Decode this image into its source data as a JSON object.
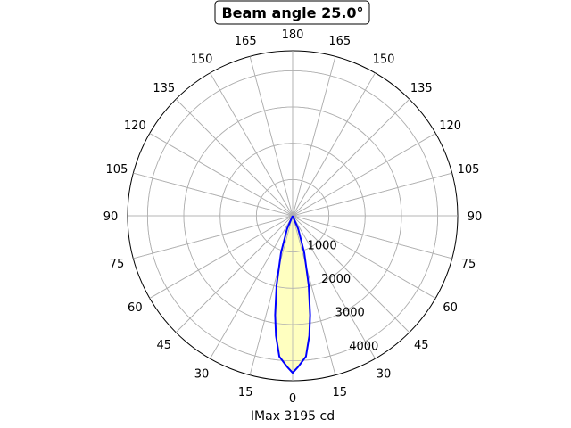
{
  "chart_data": {
    "type": "polar",
    "title": "Beam angle 25.0°",
    "xlabel": "IMax 3195 cd",
    "theta_zero": "bottom",
    "theta_ticks": [
      0,
      15,
      30,
      45,
      60,
      75,
      90,
      105,
      120,
      135,
      150,
      165,
      180
    ],
    "r_ticks": [
      1000,
      2000,
      3000,
      4000
    ],
    "r_tick_labels": [
      "1000",
      "2000",
      "3000",
      "4000"
    ],
    "rlim": [
      0,
      4550
    ],
    "grid": true,
    "series": [
      {
        "theta": [
          -28,
          -23,
          -17.5,
          -13,
          -10,
          -7.9,
          -5.4,
          -2.1,
          0,
          2.1,
          5.4,
          7.9,
          10,
          13,
          17.5,
          23,
          28
        ],
        "r": [
          0,
          390,
          1065,
          1970,
          2780,
          3340,
          3900,
          4170,
          4330,
          4170,
          3900,
          3340,
          2780,
          1970,
          1065,
          390,
          0
        ]
      }
    ],
    "colors": {
      "line": "#0000ff",
      "fill": "#ffffc0",
      "grid": "#b0b0b0"
    }
  }
}
